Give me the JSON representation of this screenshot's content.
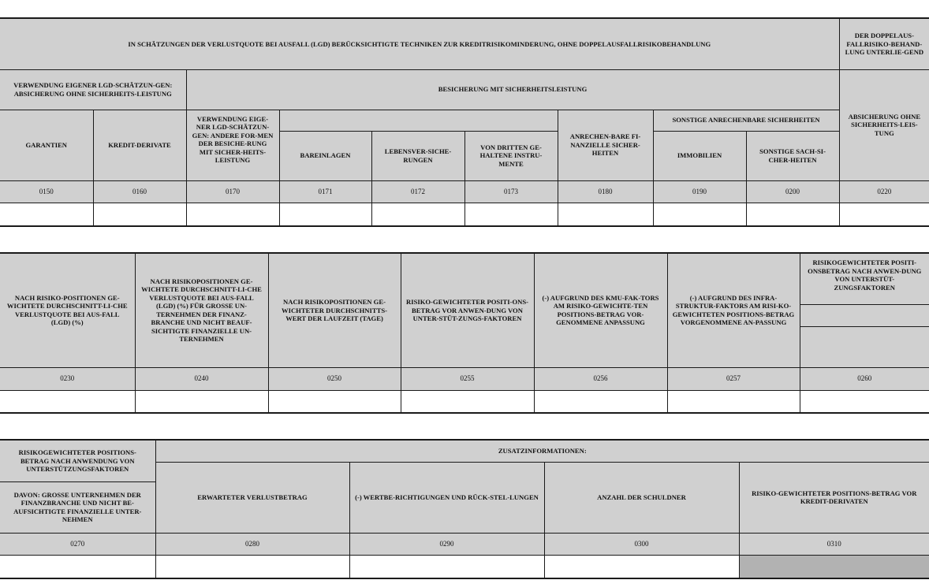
{
  "table1": {
    "title": "IN SCHÄTZUNGEN DER VERLUSTQUOTE BEI AUSFALL (LGD) BERÜCKSICHTIGTE TECHNIKEN ZUR KREDITRISIKOMINDERUNG, OHNE DOPPELAUSFALLRISIKOBEHANDLUNG",
    "double_default": "DER DOPPELAUS-FALLRISIKO-BEHAND-LUNG UNTERLIE-GEND",
    "own_lgd_unfunded": "VERWENDUNG EIGENER LGD-SCHÄTZUN-GEN: ABSICHERUNG OHNE SICHERHEITS-LEISTUNG",
    "funded": "BESICHERUNG MIT SICHERHEITSLEISTUNG",
    "unfunded": "ABSICHERUNG OHNE SICHERHEITS-LEIS-TUNG",
    "guarantees": "GARANTIEN",
    "credit_derivatives": "KREDIT-DERIVATE",
    "own_lgd_other_funded": "VERWENDUNG EIGE-NER LGD-SCHÄTZUN-GEN: ANDERE FOR-MEN DER BESICHE-RUNG MIT SICHER-HEITS-LEISTUNG",
    "cash": "BAREINLAGEN",
    "life_insurance": "LEBENSVER-SICHE-RUNGEN",
    "third_party": "VON DRITTEN GE-HALTENE INSTRU-MENTE",
    "financial_collateral": "ANRECHEN-BARE FI-NANZIELLE SICHER-HEITEN",
    "other_collateral": "SONSTIGE ANRECHENBARE SICHERHEITEN",
    "real_estate": "IMMOBILIEN",
    "other_physical": "SONSTIGE SACH-SI-CHER-HEITEN",
    "codes": [
      "0150",
      "0160",
      "0170",
      "0171",
      "0172",
      "0173",
      "0180",
      "0190",
      "0200",
      "0220"
    ]
  },
  "table2": {
    "headers": [
      "NACH RISIKO-POSITIONEN GE-WICHTETE DURCHSCHNITT-LI-CHE VERLUSTQUOTE BEI AUS-FALL (LGD) (%)",
      "NACH RISIKOPOSITIONEN GE-WICHTETE DURCHSCHNITT-LI-CHE VERLUSTQUOTE BEI AUS-FALL (LGD) (%) FÜR GROßE UN-TERNEHMEN DER FINANZ-BRANCHE UND NICHT BEAUF-SICHTIGTE FINANZIELLE UN-TERNEHMEN",
      "NACH RISIKOPOSITIONEN GE-WICHTETER DURCHSCHNITTS-WERT DER LAUFZEIT (TAGE)",
      "RISIKO-GEWICHTETER POSITI-ONS-BETRAG VOR ANWEN-DUNG VON UNTER-STÜT-ZUNGS-FAKTOREN",
      "(-) AUFGRUND DES KMU-FAK-TORS AM RISIKO-GEWICHTE-TEN POSITIONS-BETRAG VOR-GENOMMENE ANPASSUNG",
      "(-) AUFGRUND DES INFRA-STRUKTUR-FAKTORS AM RISI-KO-GEWICHTETEN POSITIONS-BETRAG VORGENOMMENE AN-PASSUNG",
      "RISIKOGEWICHTETER POSITI-ONSBETRAG NACH ANWEN-DUNG VON UNTERSTÜT-ZUNGSFAKTOREN"
    ],
    "codes": [
      "0230",
      "0240",
      "0250",
      "0255",
      "0256",
      "0257",
      "0260"
    ]
  },
  "table3": {
    "rwea_after": "RISIKOGEWICHTETER POSITIONS-BETRAG NACH ANWENDUNG VON UNTERSTÜTZUNGSFAKTOREN",
    "of_which": "DAVON: GROßE UNTERNEHMEN DER FINANZBRANCHE UND NICHT BE-AUFSICHTIGTE FINANZIELLE UNTER-NEHMEN",
    "memo": "ZUSATZINFORMATIONEN:",
    "expected_loss": "ERWARTETER VERLUSTBETRAG",
    "adjustments": "(-) WERTBE-RICHTIGUNGEN UND RÜCK-STEL-LUNGEN",
    "obligors": "ANZAHL DER SCHULDNER",
    "rwea_pre_cd": "RISIKO-GEWICHTETER POSITIONS-BETRAG VOR KREDIT-DERIVATEN",
    "codes": [
      "0270",
      "0280",
      "0290",
      "0300",
      "0310"
    ]
  },
  "colors": {
    "header_bg": "#d0d0d0",
    "greyed_cell": "#b2b2b2",
    "border": "#1a1a1a"
  }
}
